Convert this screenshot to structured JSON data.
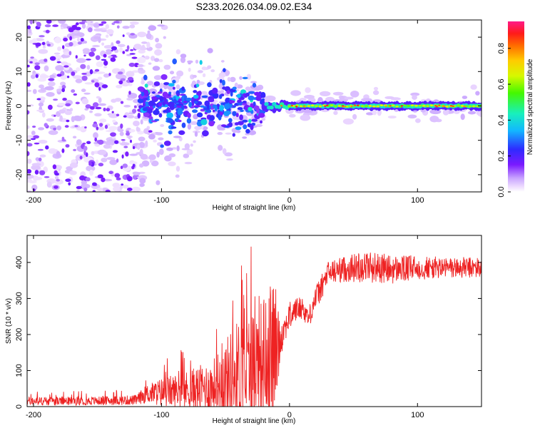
{
  "title": "S233.2026.034.09.02.E34",
  "chart_data": [
    {
      "type": "heatmap",
      "xlabel": "Height of straight line (km)",
      "ylabel": "Frequency (Hz)",
      "xlim": [
        -205,
        150
      ],
      "ylim": [
        -25,
        25
      ],
      "xticks": [
        -200,
        -100,
        0,
        100
      ],
      "yticks": [
        -20,
        -10,
        0,
        10,
        20
      ],
      "xtick_labels": [
        "-200",
        "-100",
        "0",
        "100"
      ],
      "ytick_labels": [
        "-20",
        "-10",
        "0",
        "10",
        "20"
      ],
      "colorbar": {
        "label": "Normalized spectral amplitude",
        "range": [
          0,
          0.95
        ],
        "ticks": [
          0,
          0.2,
          0.4,
          0.6,
          0.8
        ],
        "tick_labels": [
          "0.0",
          "0.2",
          "0.4",
          "0.6",
          "0.8"
        ]
      },
      "features": [
        {
          "x_range": [
            -205,
            -120
          ],
          "freq_spread": 25,
          "amplitude": 0.05,
          "note": "scattered noise"
        },
        {
          "x_range": [
            -120,
            -20
          ],
          "freq_spread": 8,
          "amplitude": 0.2,
          "note": "clustered band"
        },
        {
          "x_range": [
            -20,
            150
          ],
          "freq_spread": 1.5,
          "amplitude": 0.55,
          "note": "narrow band near 0 Hz"
        }
      ]
    },
    {
      "type": "line",
      "xlabel": "Height of straight line (km)",
      "ylabel": "SNR (10 * v/v)",
      "xlim": [
        -205,
        150
      ],
      "ylim": [
        0,
        475
      ],
      "xticks": [
        -200,
        -100,
        0,
        100
      ],
      "yticks": [
        0,
        100,
        200,
        300,
        400
      ],
      "xtick_labels": [
        "-200",
        "-100",
        "0",
        "100"
      ],
      "ytick_labels": [
        "0",
        "100",
        "200",
        "300",
        "400"
      ],
      "color": "#ee2222",
      "series": [
        {
          "name": "SNR",
          "x": [
            -205,
            -180,
            -150,
            -120,
            -112,
            -100,
            -80,
            -60,
            -50,
            -40,
            -30,
            -20,
            -12,
            -8,
            -5,
            0,
            5,
            10,
            15,
            20,
            25,
            30,
            40,
            50,
            60,
            80,
            100,
            120,
            150
          ],
          "base": [
            15,
            15,
            16,
            18,
            35,
            40,
            45,
            55,
            70,
            95,
            110,
            140,
            160,
            180,
            210,
            250,
            270,
            275,
            245,
            300,
            330,
            370,
            380,
            385,
            390,
            380,
            385,
            385,
            385
          ],
          "amp": [
            12,
            12,
            12,
            14,
            25,
            40,
            55,
            75,
            120,
            150,
            160,
            170,
            200,
            80,
            40,
            40,
            35,
            30,
            30,
            35,
            35,
            35,
            35,
            40,
            45,
            40,
            35,
            30,
            30
          ]
        }
      ]
    }
  ]
}
